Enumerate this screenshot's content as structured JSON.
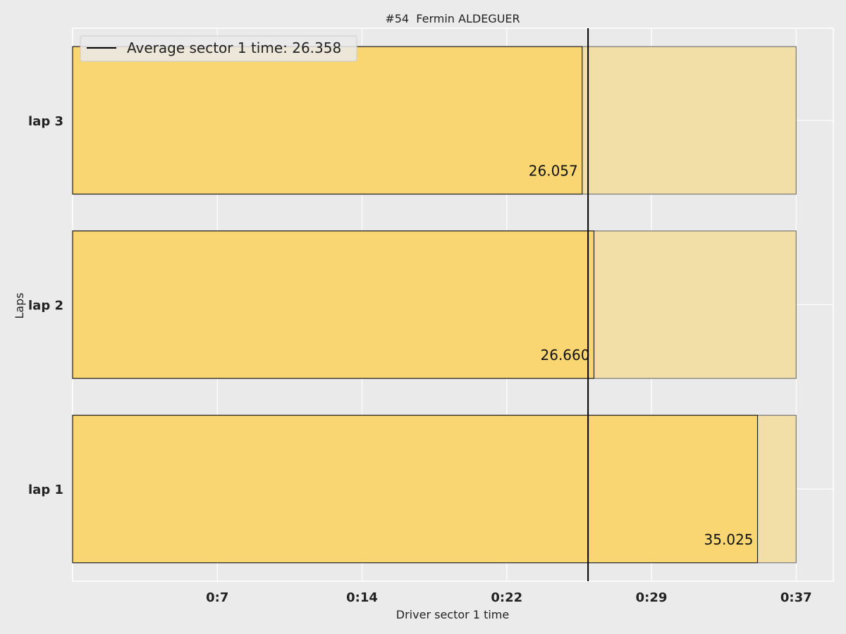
{
  "chart_data": {
    "type": "bar",
    "orientation": "horizontal",
    "title": "#54  Fermin ALDEGUER",
    "xlabel": "Driver sector 1 time",
    "ylabel": "Laps",
    "categories": [
      "lap 1",
      "lap 2",
      "lap 3"
    ],
    "values": [
      35.025,
      26.66,
      26.057
    ],
    "value_labels": [
      "35.025",
      "26.660",
      "26.057"
    ],
    "background_bar_value": 37.0,
    "average": 26.358,
    "legend": {
      "label": "Average sector 1 time: 26.358",
      "placement": "top-left"
    },
    "xticks": [
      {
        "value": 7.4,
        "label": "0:7"
      },
      {
        "value": 14.8,
        "label": "0:14"
      },
      {
        "value": 22.2,
        "label": "0:22"
      },
      {
        "value": 29.6,
        "label": "0:29"
      },
      {
        "value": 37.0,
        "label": "0:37"
      }
    ],
    "xlim": [
      0,
      38.9
    ],
    "grid": true,
    "colors": {
      "bar": "#f9d56e",
      "background_bar": "#f2dfa8",
      "average_line": "#000000",
      "plot_background": "#eaeaea",
      "page_background": "#ebebeb"
    }
  }
}
